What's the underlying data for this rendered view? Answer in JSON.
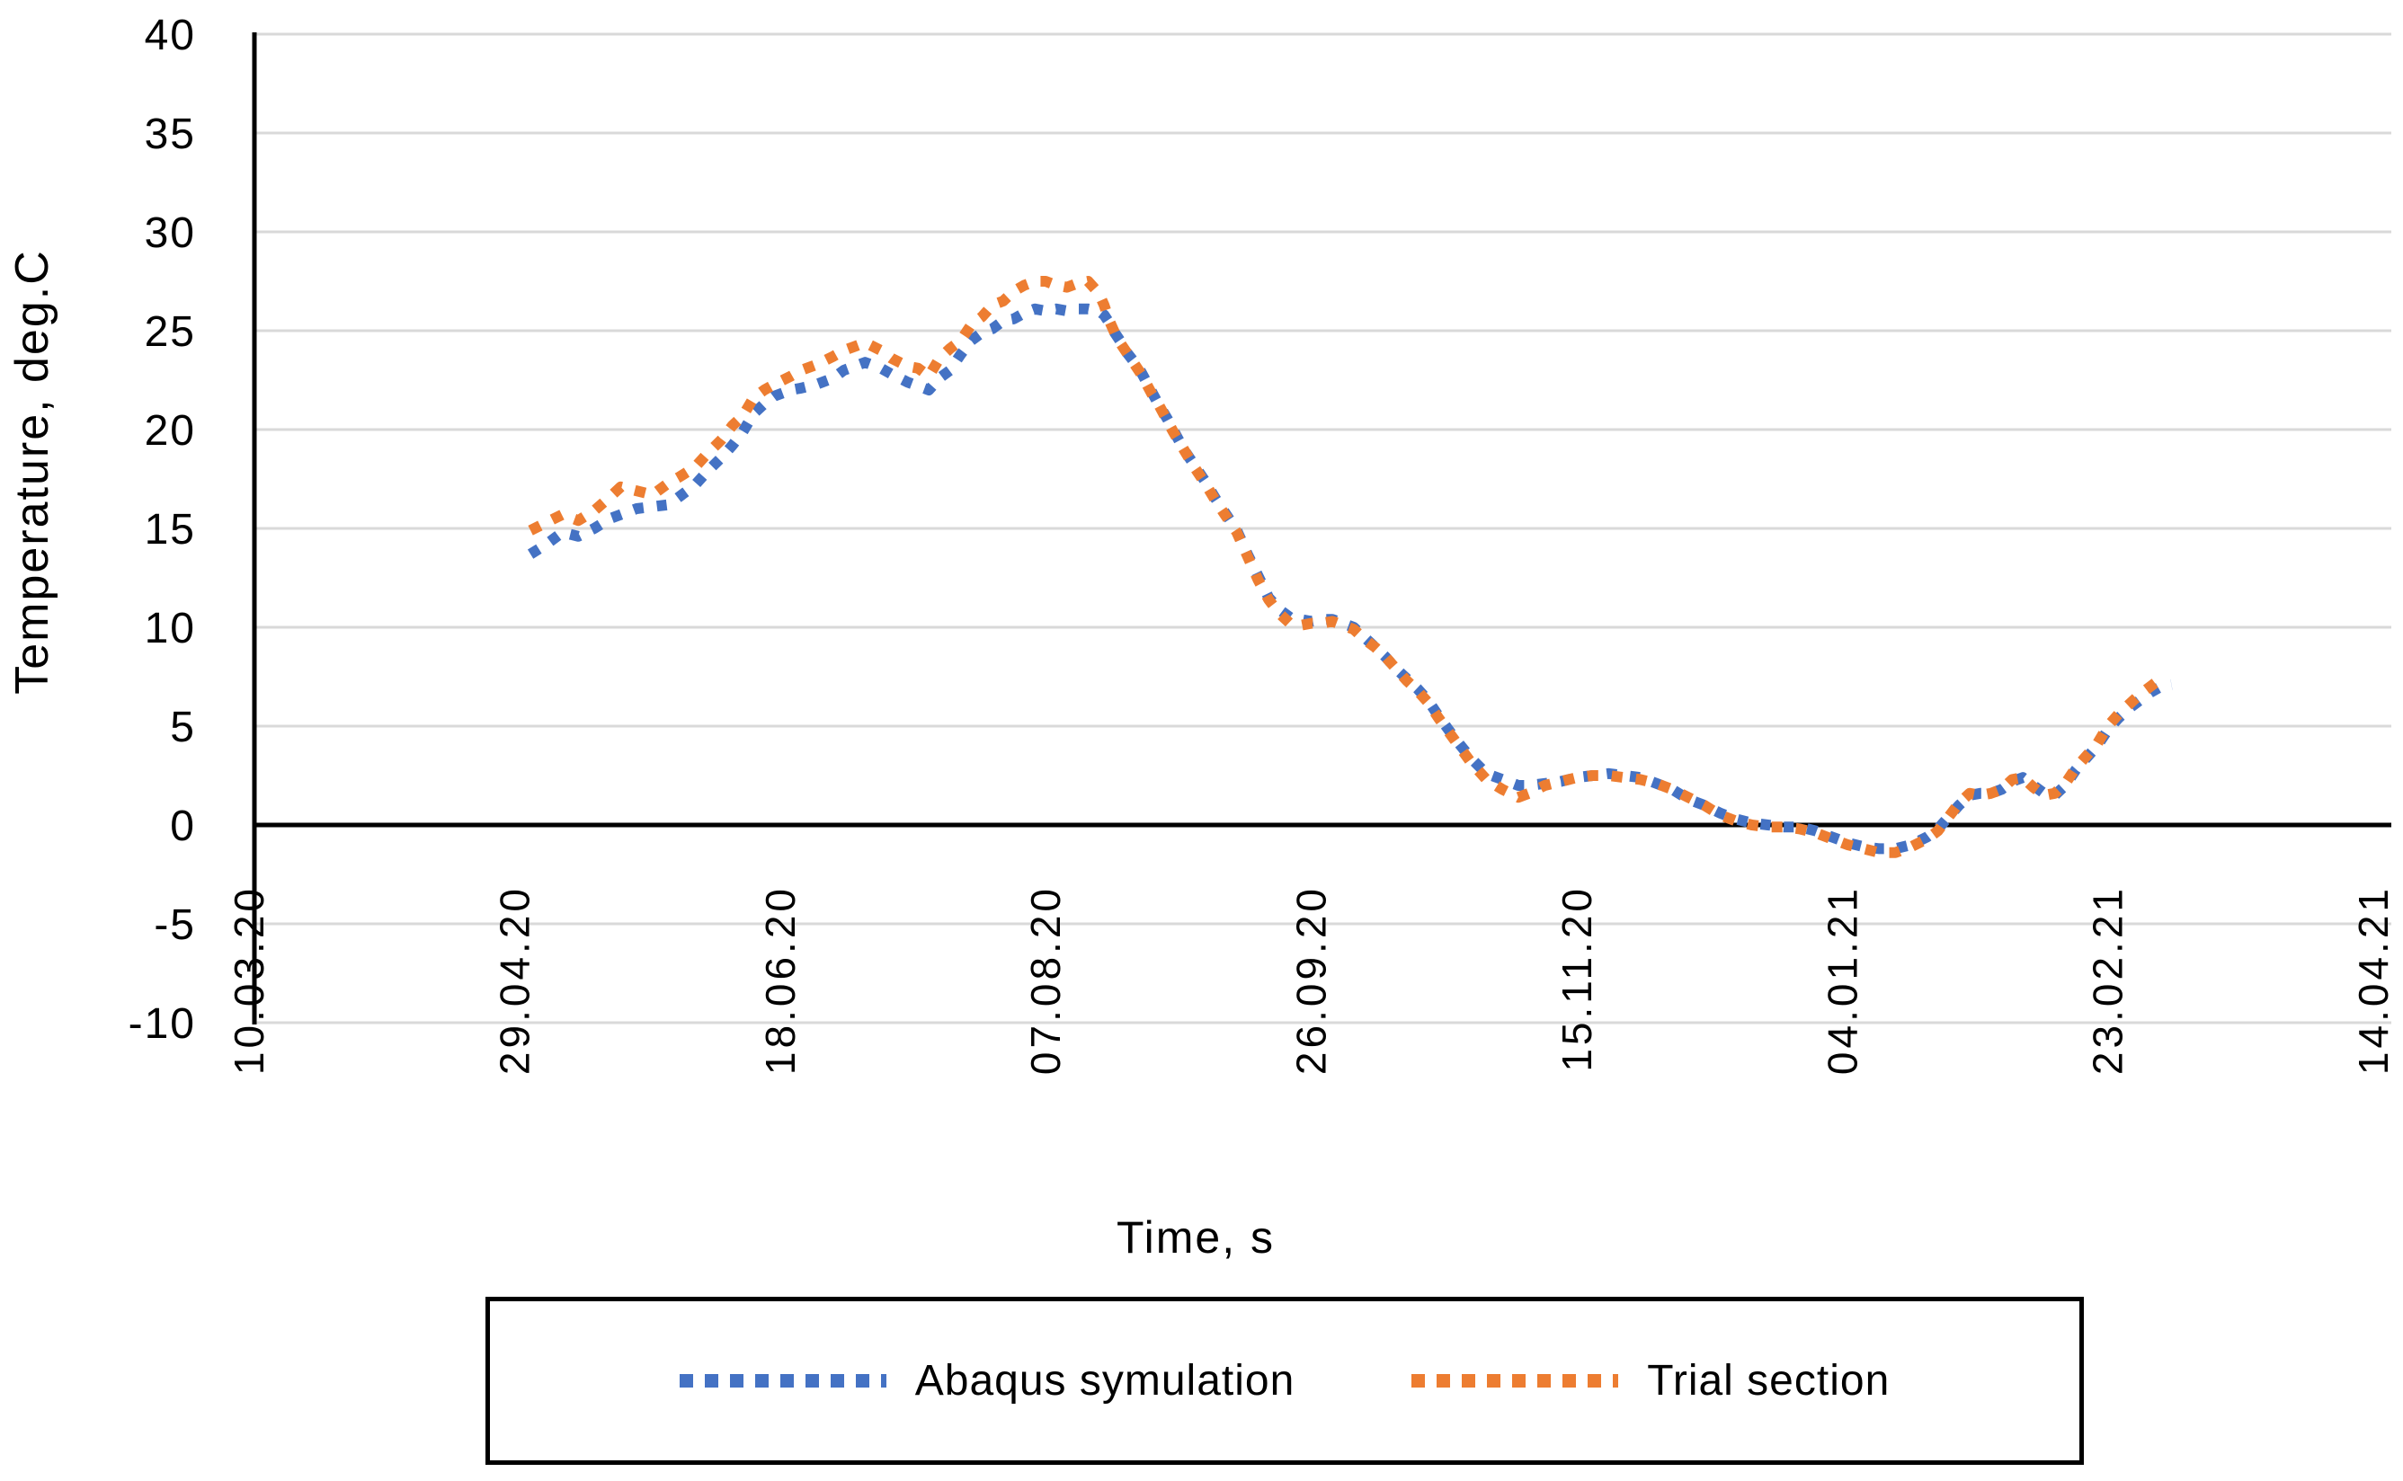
{
  "colors": {
    "background": "#ffffff",
    "gridline": "#D9D9D9",
    "axis_line": "#000000",
    "tick_text": "#000000",
    "legend_border": "#000000",
    "series_abaqus": "#4472C4",
    "series_trial": "#ED7D31"
  },
  "legend": {
    "entries": [
      {
        "label": "Abaqus symulation",
        "color": "#4472C4",
        "marker": "dotted-line"
      },
      {
        "label": "Trial section",
        "color": "#ED7D31",
        "marker": "dotted-line"
      }
    ]
  },
  "chart_data": {
    "type": "line",
    "title": "",
    "xlabel": "Time, s",
    "ylabel": "Temperature, deg.C",
    "x_unit": "date labels dd.mm.yy, one tick every 50 days, day 0 = 10.03.20",
    "x_tick_days": [
      0,
      50,
      100,
      150,
      200,
      250,
      300,
      350,
      400
    ],
    "x_tick_labels": [
      "10.03.20",
      "29.04.20",
      "18.06.20",
      "07.08.20",
      "26.09.20",
      "15.11.20",
      "04.01.21",
      "23.02.21",
      "14.04.21"
    ],
    "xlim_days": [
      0,
      403
    ],
    "ylim": [
      -10,
      40
    ],
    "y_ticks": [
      40,
      35,
      30,
      25,
      20,
      15,
      10,
      5,
      0,
      -5,
      -10
    ],
    "grid": "horizontal",
    "legend_position": "bottom-box",
    "line_style": "dotted",
    "series": [
      {
        "name": "Abaqus symulation",
        "color": "#4472C4",
        "style": "dotted",
        "points": [
          [
            53,
            13.7
          ],
          [
            56,
            14.2
          ],
          [
            59,
            14.8
          ],
          [
            62,
            14.6
          ],
          [
            65,
            15.0
          ],
          [
            68,
            15.5
          ],
          [
            70,
            15.7
          ],
          [
            73,
            16.0
          ],
          [
            76,
            16.1
          ],
          [
            79,
            16.2
          ],
          [
            81,
            16.6
          ],
          [
            84,
            17.2
          ],
          [
            86,
            17.8
          ],
          [
            89,
            18.6
          ],
          [
            91,
            19.2
          ],
          [
            93,
            19.9
          ],
          [
            95,
            20.8
          ],
          [
            97,
            21.3
          ],
          [
            99,
            21.7
          ],
          [
            102,
            22.0
          ],
          [
            104,
            22.1
          ],
          [
            107,
            22.3
          ],
          [
            110,
            22.6
          ],
          [
            112,
            23.0
          ],
          [
            114,
            23.2
          ],
          [
            116,
            23.4
          ],
          [
            119,
            23.1
          ],
          [
            121,
            22.8
          ],
          [
            124,
            22.4
          ],
          [
            126,
            22.2
          ],
          [
            128,
            22.0
          ],
          [
            130,
            22.6
          ],
          [
            132,
            23.0
          ],
          [
            134,
            23.8
          ],
          [
            136,
            24.5
          ],
          [
            138,
            24.9
          ],
          [
            140,
            25.1
          ],
          [
            142,
            25.5
          ],
          [
            144,
            25.6
          ],
          [
            146,
            25.9
          ],
          [
            148,
            26.1
          ],
          [
            150,
            26.0
          ],
          [
            152,
            26.1
          ],
          [
            154,
            26.0
          ],
          [
            156,
            26.1
          ],
          [
            158,
            26.1
          ],
          [
            160,
            26.0
          ],
          [
            161,
            25.8
          ],
          [
            162,
            25.4
          ],
          [
            163,
            24.9
          ],
          [
            164,
            24.5
          ],
          [
            165,
            24.0
          ],
          [
            167,
            23.3
          ],
          [
            168,
            22.9
          ],
          [
            170,
            21.9
          ],
          [
            171,
            21.4
          ],
          [
            173,
            20.5
          ],
          [
            174,
            20.0
          ],
          [
            176,
            19.0
          ],
          [
            178,
            18.2
          ],
          [
            180,
            17.4
          ],
          [
            182,
            16.5
          ],
          [
            184,
            15.7
          ],
          [
            186,
            14.9
          ],
          [
            188,
            13.7
          ],
          [
            190,
            12.6
          ],
          [
            192,
            11.5
          ],
          [
            194,
            10.9
          ],
          [
            196,
            10.5
          ],
          [
            198,
            10.4
          ],
          [
            200,
            10.3
          ],
          [
            202,
            10.4
          ],
          [
            204,
            10.4
          ],
          [
            206,
            10.2
          ],
          [
            208,
            10.0
          ],
          [
            210,
            9.5
          ],
          [
            212,
            9.0
          ],
          [
            214,
            8.5
          ],
          [
            216,
            7.9
          ],
          [
            218,
            7.4
          ],
          [
            220,
            6.9
          ],
          [
            222,
            6.3
          ],
          [
            224,
            5.5
          ],
          [
            227,
            4.4
          ],
          [
            230,
            3.4
          ],
          [
            233,
            2.6
          ],
          [
            236,
            2.3
          ],
          [
            239,
            2.0
          ],
          [
            241,
            2.0
          ],
          [
            244,
            2.1
          ],
          [
            247,
            2.2
          ],
          [
            250,
            2.4
          ],
          [
            253,
            2.5
          ],
          [
            256,
            2.6
          ],
          [
            259,
            2.5
          ],
          [
            262,
            2.4
          ],
          [
            265,
            2.1
          ],
          [
            268,
            1.8
          ],
          [
            271,
            1.3
          ],
          [
            274,
            1.0
          ],
          [
            277,
            0.6
          ],
          [
            280,
            0.3
          ],
          [
            283,
            0.1
          ],
          [
            286,
            0.0
          ],
          [
            289,
            -0.1
          ],
          [
            292,
            -0.1
          ],
          [
            295,
            -0.3
          ],
          [
            298,
            -0.6
          ],
          [
            301,
            -0.9
          ],
          [
            304,
            -1.1
          ],
          [
            307,
            -1.2
          ],
          [
            310,
            -1.2
          ],
          [
            313,
            -1.0
          ],
          [
            316,
            -0.6
          ],
          [
            318,
            -0.2
          ],
          [
            320,
            0.4
          ],
          [
            322,
            1.0
          ],
          [
            324,
            1.5
          ],
          [
            326,
            1.6
          ],
          [
            328,
            1.6
          ],
          [
            330,
            1.8
          ],
          [
            332,
            2.2
          ],
          [
            334,
            2.4
          ],
          [
            336,
            2.0
          ],
          [
            338,
            1.6
          ],
          [
            340,
            1.5
          ],
          [
            342,
            2.0
          ],
          [
            344,
            2.8
          ],
          [
            346,
            3.4
          ],
          [
            348,
            4.0
          ],
          [
            350,
            4.8
          ],
          [
            352,
            5.4
          ],
          [
            354,
            5.9
          ],
          [
            356,
            6.3
          ],
          [
            358,
            6.7
          ],
          [
            360,
            7.0
          ],
          [
            362,
            7.1
          ]
        ]
      },
      {
        "name": "Trial section",
        "color": "#ED7D31",
        "style": "dotted",
        "points": [
          [
            53,
            14.9
          ],
          [
            56,
            15.3
          ],
          [
            59,
            15.7
          ],
          [
            62,
            15.4
          ],
          [
            65,
            15.9
          ],
          [
            68,
            16.6
          ],
          [
            70,
            17.1
          ],
          [
            73,
            16.9
          ],
          [
            76,
            16.7
          ],
          [
            79,
            17.3
          ],
          [
            81,
            17.6
          ],
          [
            84,
            18.1
          ],
          [
            86,
            18.7
          ],
          [
            89,
            19.5
          ],
          [
            91,
            20.2
          ],
          [
            93,
            20.7
          ],
          [
            95,
            21.6
          ],
          [
            97,
            22.0
          ],
          [
            99,
            22.3
          ],
          [
            102,
            22.7
          ],
          [
            104,
            23.0
          ],
          [
            107,
            23.3
          ],
          [
            110,
            23.7
          ],
          [
            112,
            24.0
          ],
          [
            114,
            24.2
          ],
          [
            116,
            24.4
          ],
          [
            119,
            24.0
          ],
          [
            121,
            23.6
          ],
          [
            124,
            23.2
          ],
          [
            126,
            23.1
          ],
          [
            128,
            22.7
          ],
          [
            130,
            23.6
          ],
          [
            132,
            24.1
          ],
          [
            134,
            24.5
          ],
          [
            136,
            25.3
          ],
          [
            138,
            25.7
          ],
          [
            140,
            26.3
          ],
          [
            142,
            26.5
          ],
          [
            144,
            27.0
          ],
          [
            146,
            27.3
          ],
          [
            148,
            27.5
          ],
          [
            150,
            27.5
          ],
          [
            152,
            27.3
          ],
          [
            154,
            27.2
          ],
          [
            156,
            27.4
          ],
          [
            158,
            27.5
          ],
          [
            160,
            26.9
          ],
          [
            161,
            26.3
          ],
          [
            162,
            25.5
          ],
          [
            163,
            24.9
          ],
          [
            164,
            24.4
          ],
          [
            165,
            24.0
          ],
          [
            167,
            23.2
          ],
          [
            168,
            22.8
          ],
          [
            170,
            21.8
          ],
          [
            171,
            21.4
          ],
          [
            173,
            20.4
          ],
          [
            174,
            19.9
          ],
          [
            176,
            19.0
          ],
          [
            178,
            18.1
          ],
          [
            180,
            17.3
          ],
          [
            182,
            16.4
          ],
          [
            184,
            15.6
          ],
          [
            186,
            14.8
          ],
          [
            188,
            13.6
          ],
          [
            190,
            12.4
          ],
          [
            192,
            11.4
          ],
          [
            194,
            10.7
          ],
          [
            196,
            10.2
          ],
          [
            198,
            10.1
          ],
          [
            200,
            10.2
          ],
          [
            202,
            10.2
          ],
          [
            204,
            10.3
          ],
          [
            206,
            10.1
          ],
          [
            208,
            9.9
          ],
          [
            210,
            9.4
          ],
          [
            212,
            9.0
          ],
          [
            214,
            8.5
          ],
          [
            216,
            7.9
          ],
          [
            218,
            7.3
          ],
          [
            220,
            6.8
          ],
          [
            222,
            6.2
          ],
          [
            224,
            5.4
          ],
          [
            227,
            4.3
          ],
          [
            230,
            3.2
          ],
          [
            233,
            2.3
          ],
          [
            236,
            1.8
          ],
          [
            239,
            1.4
          ],
          [
            241,
            1.6
          ],
          [
            244,
            2.0
          ],
          [
            247,
            2.2
          ],
          [
            250,
            2.4
          ],
          [
            253,
            2.5
          ],
          [
            256,
            2.5
          ],
          [
            259,
            2.4
          ],
          [
            262,
            2.3
          ],
          [
            265,
            2.1
          ],
          [
            268,
            1.8
          ],
          [
            271,
            1.4
          ],
          [
            274,
            1.0
          ],
          [
            277,
            0.5
          ],
          [
            280,
            0.2
          ],
          [
            283,
            0.0
          ],
          [
            286,
            -0.1
          ],
          [
            289,
            -0.1
          ],
          [
            292,
            -0.2
          ],
          [
            295,
            -0.4
          ],
          [
            298,
            -0.7
          ],
          [
            301,
            -1.0
          ],
          [
            304,
            -1.2
          ],
          [
            307,
            -1.4
          ],
          [
            310,
            -1.4
          ],
          [
            313,
            -1.1
          ],
          [
            316,
            -0.7
          ],
          [
            318,
            -0.3
          ],
          [
            320,
            0.4
          ],
          [
            322,
            1.1
          ],
          [
            324,
            1.6
          ],
          [
            326,
            1.5
          ],
          [
            328,
            1.6
          ],
          [
            330,
            1.8
          ],
          [
            332,
            2.3
          ],
          [
            334,
            2.4
          ],
          [
            336,
            1.9
          ],
          [
            338,
            1.5
          ],
          [
            340,
            1.6
          ],
          [
            342,
            2.1
          ],
          [
            344,
            2.9
          ],
          [
            346,
            3.5
          ],
          [
            348,
            4.1
          ],
          [
            350,
            5.0
          ],
          [
            352,
            5.6
          ],
          [
            354,
            6.1
          ],
          [
            356,
            6.6
          ],
          [
            358,
            7.0
          ],
          [
            360,
            7.4
          ],
          [
            361,
            7.5
          ]
        ]
      }
    ]
  }
}
